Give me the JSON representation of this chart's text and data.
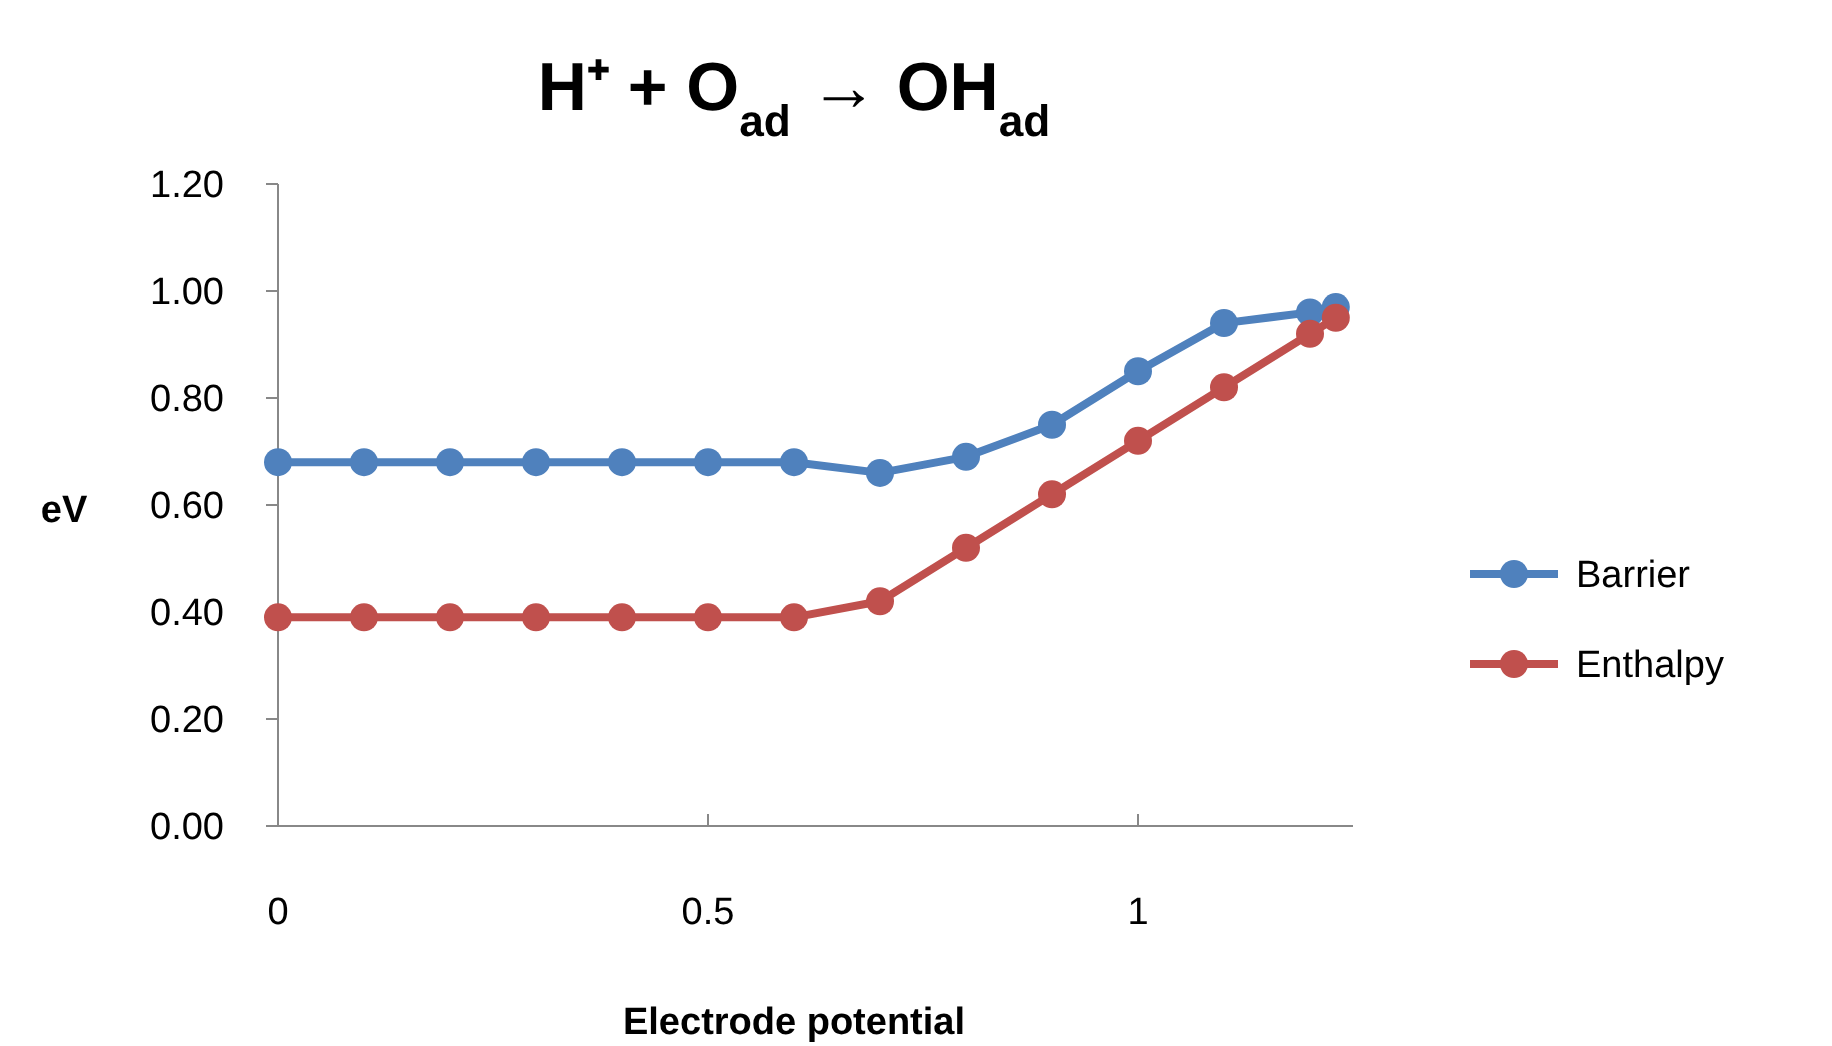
{
  "chart_data": {
    "type": "line",
    "title": "H⁺ + O$_{ad}$ → OH$_{ad}$",
    "xlabel": "Electrode potential",
    "ylabel": "eV",
    "x": [
      0,
      0.1,
      0.2,
      0.3,
      0.4,
      0.5,
      0.6,
      0.7,
      0.8,
      0.9,
      1.0,
      1.1,
      1.2,
      1.23
    ],
    "series": [
      {
        "name": "Barrier",
        "color": "#4f81bd",
        "values": [
          0.68,
          0.68,
          0.68,
          0.68,
          0.68,
          0.68,
          0.68,
          0.66,
          0.69,
          0.75,
          0.85,
          0.94,
          0.96,
          0.97
        ]
      },
      {
        "name": "Enthalpy",
        "color": "#c0504d",
        "values": [
          0.39,
          0.39,
          0.39,
          0.39,
          0.39,
          0.39,
          0.39,
          0.42,
          0.52,
          0.62,
          0.72,
          0.82,
          0.92,
          0.95
        ]
      }
    ],
    "xlim": [
      0,
      1.25
    ],
    "xticks": [
      0,
      0.5,
      1
    ],
    "ylim": [
      0,
      1.2
    ],
    "yticks": [
      {
        "value": 0,
        "label": "0.00"
      },
      {
        "value": 0.2,
        "label": "0.20"
      },
      {
        "value": 0.4,
        "label": "0.40"
      },
      {
        "value": 0.6,
        "label": "0.60"
      },
      {
        "value": 0.8,
        "label": "0.80"
      },
      {
        "value": 1,
        "label": "1.00"
      },
      {
        "value": 1.2,
        "label": "1.20"
      }
    ],
    "grid": false,
    "legend": "right",
    "marker": "circle",
    "line_style": "solid"
  }
}
